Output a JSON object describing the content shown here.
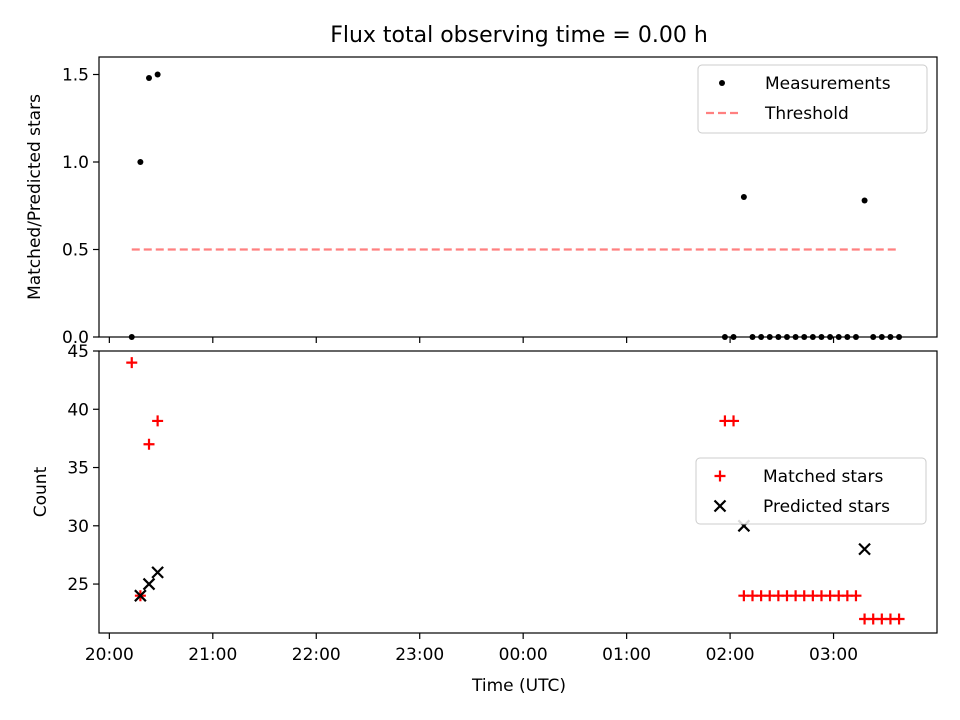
{
  "chart_data": {
    "title": "Flux total observing time = 0.00 h",
    "x_tick_labels": [
      "20:00",
      "21:00",
      "22:00",
      "23:00",
      "00:00",
      "01:00",
      "02:00",
      "03:00"
    ],
    "xlabel": "Time (UTC)",
    "xlim": [
      "19:54",
      "04:00"
    ],
    "panels": [
      {
        "type": "scatter",
        "ylabel": "Matched/Predicted stars",
        "ylim": [
          0,
          1.6
        ],
        "y_ticks": [
          0.0,
          0.5,
          1.0,
          1.5
        ],
        "y_tick_labels": [
          "0.0",
          "0.5",
          "1.0",
          "1.5"
        ],
        "legend_position": "upper right",
        "series": [
          {
            "name": "Measurements",
            "color": "#000000",
            "marker": "dot",
            "points": [
              [
                "20:13",
                0.0
              ],
              [
                "20:18",
                1.0
              ],
              [
                "20:23",
                1.48
              ],
              [
                "20:28",
                1.5
              ],
              [
                "01:57",
                0.0
              ],
              [
                "02:02",
                0.0
              ],
              [
                "02:08",
                0.8
              ],
              [
                "02:13",
                0.0
              ],
              [
                "02:18",
                0.0
              ],
              [
                "02:23",
                0.0
              ],
              [
                "02:28",
                0.0
              ],
              [
                "02:33",
                0.0
              ],
              [
                "02:38",
                0.0
              ],
              [
                "02:43",
                0.0
              ],
              [
                "02:48",
                0.0
              ],
              [
                "02:53",
                0.0
              ],
              [
                "02:58",
                0.0
              ],
              [
                "03:03",
                0.0
              ],
              [
                "03:08",
                0.0
              ],
              [
                "03:13",
                0.0
              ],
              [
                "03:18",
                0.78
              ],
              [
                "03:23",
                0.0
              ],
              [
                "03:28",
                0.0
              ],
              [
                "03:33",
                0.0
              ],
              [
                "03:38",
                0.0
              ]
            ]
          },
          {
            "name": "Threshold",
            "color": "#ff8080",
            "style": "dashed",
            "points": [
              [
                "20:13",
                0.5
              ],
              [
                "03:38",
                0.5
              ]
            ]
          }
        ]
      },
      {
        "type": "scatter",
        "ylabel": "Count",
        "ylim": [
          20.8,
          45
        ],
        "y_ticks": [
          25,
          30,
          35,
          40,
          45
        ],
        "y_tick_labels": [
          "25",
          "30",
          "35",
          "40",
          "45"
        ],
        "legend_position": "center right",
        "series": [
          {
            "name": "Matched stars",
            "color": "#ff0000",
            "marker": "plus",
            "points": [
              [
                "20:13",
                44
              ],
              [
                "20:18",
                24
              ],
              [
                "20:23",
                37
              ],
              [
                "20:28",
                39
              ],
              [
                "01:57",
                39
              ],
              [
                "02:02",
                39
              ],
              [
                "02:08",
                24
              ],
              [
                "02:13",
                24
              ],
              [
                "02:18",
                24
              ],
              [
                "02:23",
                24
              ],
              [
                "02:28",
                24
              ],
              [
                "02:33",
                24
              ],
              [
                "02:38",
                24
              ],
              [
                "02:43",
                24
              ],
              [
                "02:48",
                24
              ],
              [
                "02:53",
                24
              ],
              [
                "02:58",
                24
              ],
              [
                "03:03",
                24
              ],
              [
                "03:08",
                24
              ],
              [
                "03:13",
                24
              ],
              [
                "03:18",
                22
              ],
              [
                "03:23",
                22
              ],
              [
                "03:28",
                22
              ],
              [
                "03:33",
                22
              ],
              [
                "03:38",
                22
              ]
            ]
          },
          {
            "name": "Predicted stars",
            "color": "#000000",
            "marker": "x",
            "points": [
              [
                "20:18",
                24
              ],
              [
                "20:23",
                25
              ],
              [
                "20:28",
                26
              ],
              [
                "02:08",
                30
              ],
              [
                "03:18",
                28
              ]
            ]
          }
        ]
      }
    ]
  }
}
